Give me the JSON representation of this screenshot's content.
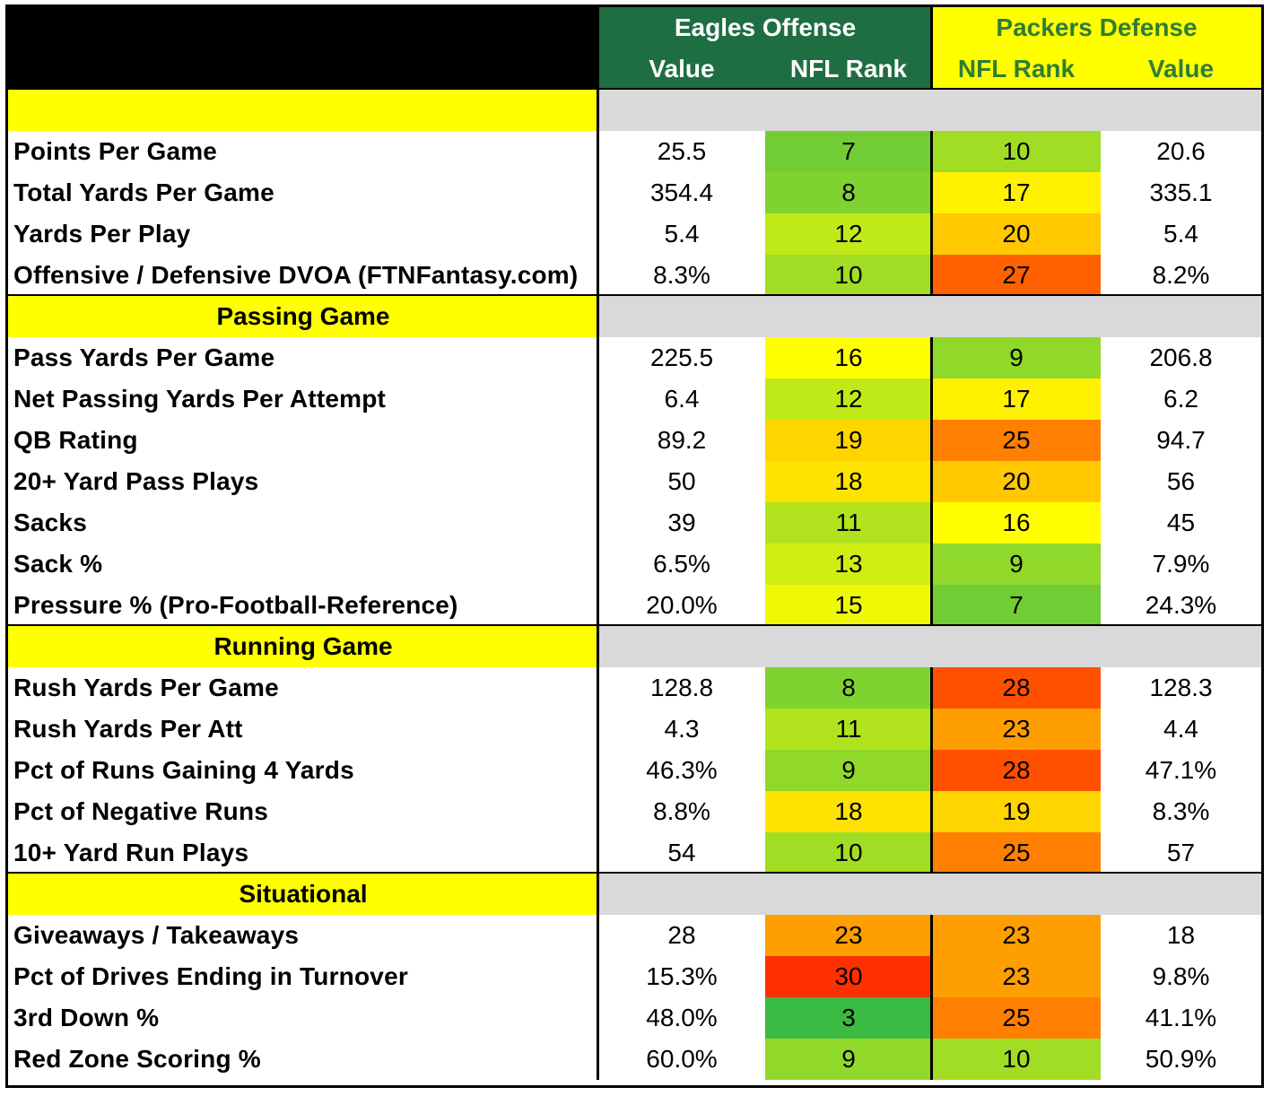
{
  "chart_data": {
    "type": "table",
    "header": {
      "eagles_title": "Eagles Offense",
      "packers_title": "Packers Defense",
      "col_value": "Value",
      "col_rank": "NFL Rank"
    },
    "colors": {
      "eagles_header_bg": "#1f6e43",
      "eagles_header_text": "#ffffff",
      "packers_header_bg": "#ffff00",
      "packers_header_text": "#2e7d32",
      "section_label_bg": "#ffff00",
      "section_band_bg": "#d9d9d9",
      "corner_bg": "#000000",
      "rank_scale": "green (best rank 1) to yellow (16) to red (worst rank 32)"
    },
    "sections": [
      {
        "title": "",
        "rows": [
          {
            "label": "Points Per Game",
            "eagles_value": "25.5",
            "eagles_rank": 7,
            "packers_rank": 10,
            "packers_value": "20.6"
          },
          {
            "label": "Total Yards Per Game",
            "eagles_value": "354.4",
            "eagles_rank": 8,
            "packers_rank": 17,
            "packers_value": "335.1"
          },
          {
            "label": "Yards Per Play",
            "eagles_value": "5.4",
            "eagles_rank": 12,
            "packers_rank": 20,
            "packers_value": "5.4"
          },
          {
            "label": "Offensive / Defensive DVOA (FTNFantasy.com)",
            "eagles_value": "8.3%",
            "eagles_rank": 10,
            "packers_rank": 27,
            "packers_value": "8.2%"
          }
        ]
      },
      {
        "title": "Passing Game",
        "rows": [
          {
            "label": "Pass Yards Per Game",
            "eagles_value": "225.5",
            "eagles_rank": 16,
            "packers_rank": 9,
            "packers_value": "206.8"
          },
          {
            "label": "Net Passing Yards Per Attempt",
            "eagles_value": "6.4",
            "eagles_rank": 12,
            "packers_rank": 17,
            "packers_value": "6.2"
          },
          {
            "label": "QB Rating",
            "eagles_value": "89.2",
            "eagles_rank": 19,
            "packers_rank": 25,
            "packers_value": "94.7"
          },
          {
            "label": "20+ Yard Pass Plays",
            "eagles_value": "50",
            "eagles_rank": 18,
            "packers_rank": 20,
            "packers_value": "56"
          },
          {
            "label": "Sacks",
            "eagles_value": "39",
            "eagles_rank": 11,
            "packers_rank": 16,
            "packers_value": "45"
          },
          {
            "label": "Sack %",
            "eagles_value": "6.5%",
            "eagles_rank": 13,
            "packers_rank": 9,
            "packers_value": "7.9%"
          },
          {
            "label": "Pressure % (Pro-Football-Reference)",
            "eagles_value": "20.0%",
            "eagles_rank": 15,
            "packers_rank": 7,
            "packers_value": "24.3%"
          }
        ]
      },
      {
        "title": "Running Game",
        "rows": [
          {
            "label": "Rush Yards Per Game",
            "eagles_value": "128.8",
            "eagles_rank": 8,
            "packers_rank": 28,
            "packers_value": "128.3"
          },
          {
            "label": "Rush Yards Per Att",
            "eagles_value": "4.3",
            "eagles_rank": 11,
            "packers_rank": 23,
            "packers_value": "4.4"
          },
          {
            "label": "Pct of Runs Gaining 4 Yards",
            "eagles_value": "46.3%",
            "eagles_rank": 9,
            "packers_rank": 28,
            "packers_value": "47.1%"
          },
          {
            "label": "Pct of Negative Runs",
            "eagles_value": "8.8%",
            "eagles_rank": 18,
            "packers_rank": 19,
            "packers_value": "8.3%"
          },
          {
            "label": "10+ Yard Run Plays",
            "eagles_value": "54",
            "eagles_rank": 10,
            "packers_rank": 25,
            "packers_value": "57"
          }
        ]
      },
      {
        "title": "Situational",
        "rows": [
          {
            "label": "Giveaways / Takeaways",
            "eagles_value": "28",
            "eagles_rank": 23,
            "packers_rank": 23,
            "packers_value": "18"
          },
          {
            "label": "Pct of Drives Ending in Turnover",
            "eagles_value": "15.3%",
            "eagles_rank": 30,
            "packers_rank": 23,
            "packers_value": "9.8%"
          },
          {
            "label": "3rd Down %",
            "eagles_value": "48.0%",
            "eagles_rank": 3,
            "packers_rank": 25,
            "packers_value": "41.1%"
          },
          {
            "label": "Red Zone Scoring %",
            "eagles_value": "60.0%",
            "eagles_rank": 9,
            "packers_rank": 10,
            "packers_value": "50.9%"
          }
        ]
      }
    ]
  }
}
